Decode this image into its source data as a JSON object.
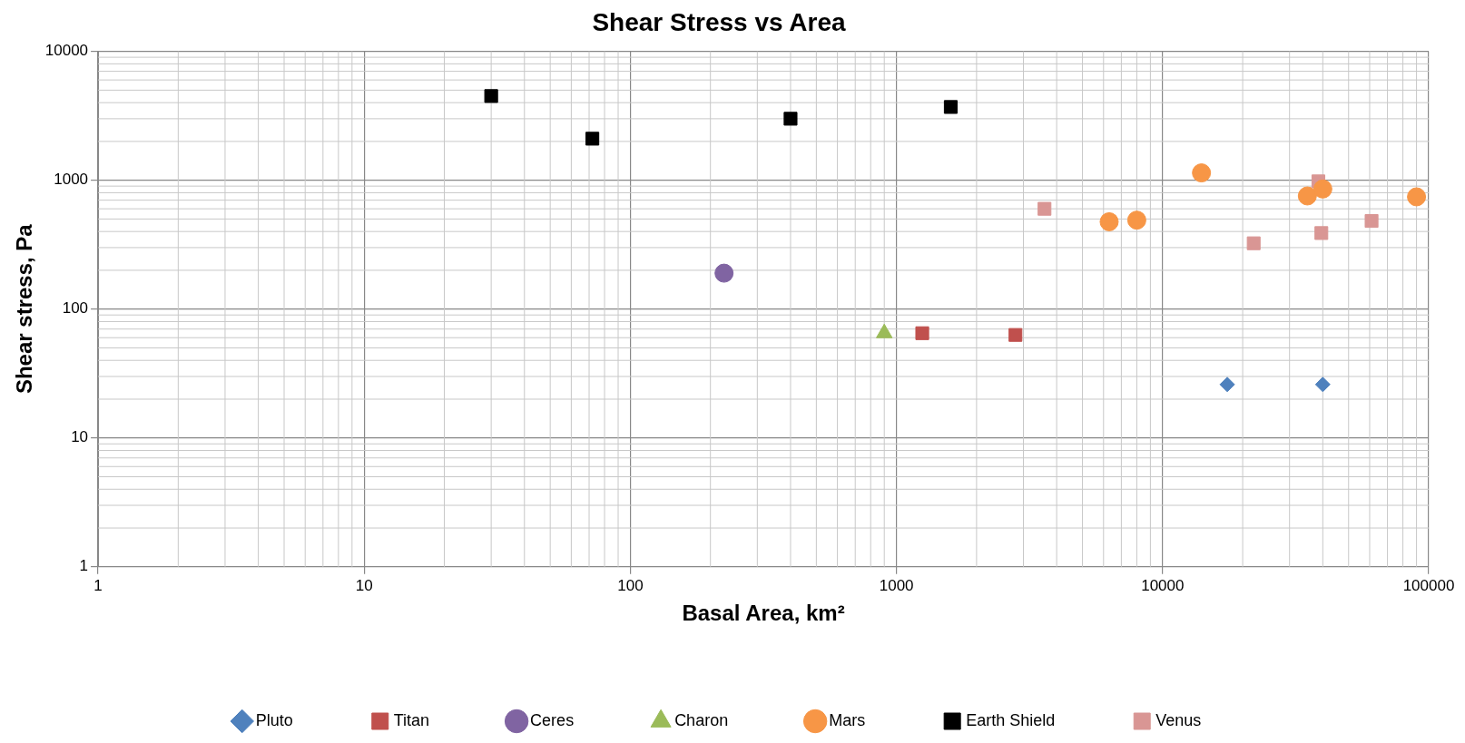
{
  "chart_data": {
    "type": "scatter",
    "title": "Shear Stress vs Area",
    "xlabel": "Basal Area, km²",
    "ylabel": "Shear stress, Pa",
    "log": "xy",
    "grid": true,
    "legend": "bottom",
    "xlim": [
      1,
      100000
    ],
    "xticks": [
      1,
      10,
      100,
      1000,
      10000,
      100000
    ],
    "ylim": [
      1,
      10000
    ],
    "yticks": [
      1,
      10,
      100,
      1000,
      10000
    ],
    "series": [
      {
        "name": "Pluto",
        "color": "#4f81bd",
        "marker": "diamond",
        "x": [
          17500,
          40000
        ],
        "values": [
          26,
          26
        ]
      },
      {
        "name": "Titan",
        "color": "#c0504d",
        "marker": "square",
        "x": [
          1250,
          2800
        ],
        "values": [
          65,
          63
        ]
      },
      {
        "name": "Ceres",
        "color": "#8064a2",
        "marker": "circle",
        "x": [
          225
        ],
        "values": [
          190
        ]
      },
      {
        "name": "Charon",
        "color": "#9bbb59",
        "marker": "triangle",
        "x": [
          900
        ],
        "values": [
          65
        ]
      },
      {
        "name": "Mars",
        "color": "#f79646",
        "marker": "circle",
        "x": [
          6300,
          8000,
          14000,
          35000,
          40000,
          90000
        ],
        "values": [
          476,
          490,
          1140,
          755,
          855,
          743
        ]
      },
      {
        "name": "Earth Shield",
        "color": "#000000",
        "marker": "square",
        "x": [
          30,
          72,
          400,
          1600
        ],
        "values": [
          4500,
          2100,
          3000,
          3700
        ]
      },
      {
        "name": "Venus",
        "color": "#d99694",
        "marker": "square",
        "x": [
          3600,
          22000,
          38500,
          39500,
          61000
        ],
        "values": [
          600,
          324,
          980,
          389,
          483
        ]
      }
    ]
  }
}
